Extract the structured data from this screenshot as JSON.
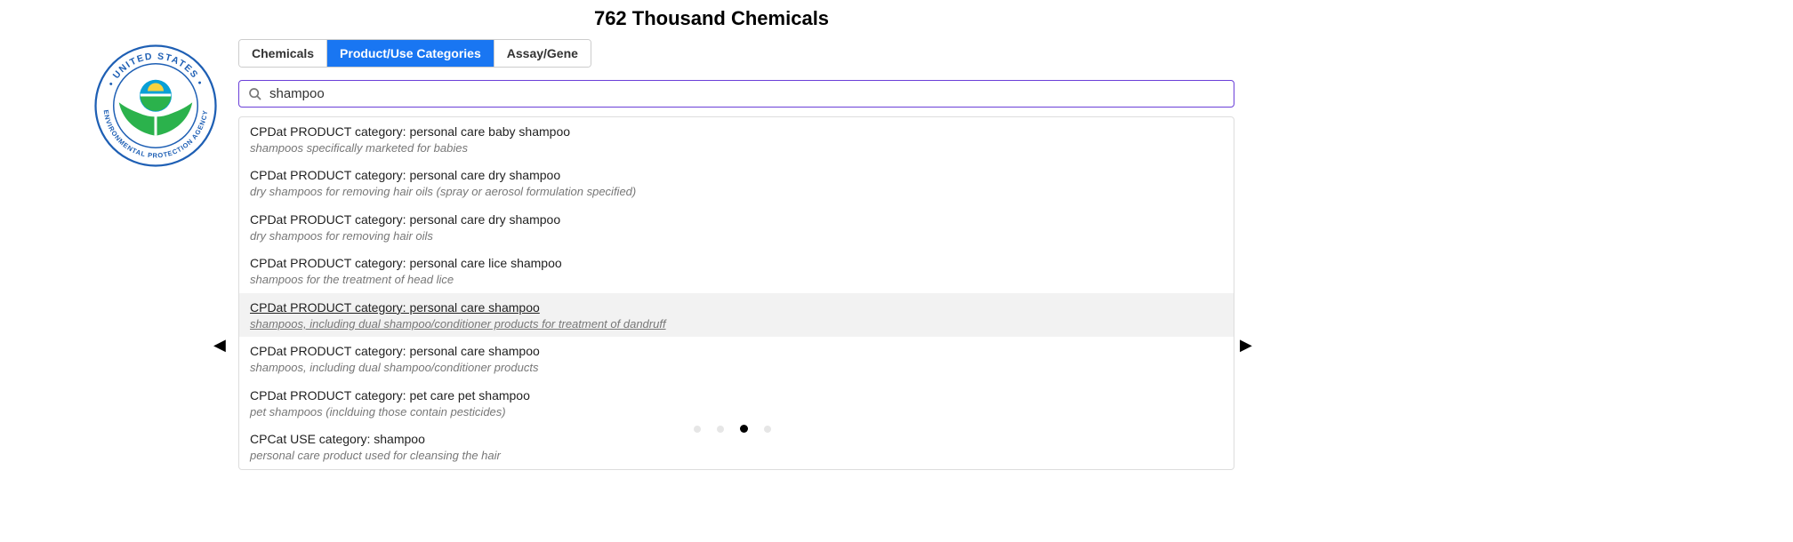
{
  "title": "762 Thousand Chemicals",
  "logo": {
    "outer_text_top": "UNITED STATES",
    "outer_text_bottom": "ENVIRONMENTAL PROTECTION AGENCY",
    "ring_color": "#1e5fb4",
    "flower_green": "#2bb24c",
    "sun_blue": "#0aa0d6",
    "sun_yellow": "#f7d23e"
  },
  "tabs": [
    {
      "id": "chemicals",
      "label": "Chemicals",
      "active": false
    },
    {
      "id": "product",
      "label": "Product/Use Categories",
      "active": true
    },
    {
      "id": "assay",
      "label": "Assay/Gene",
      "active": false
    }
  ],
  "search": {
    "value": "shampoo",
    "placeholder": "Search",
    "border_color": "#6a3fd8"
  },
  "results": [
    {
      "title": "CPDat PRODUCT category: personal care baby shampoo",
      "desc": "shampoos specifically marketed for babies",
      "hover": false
    },
    {
      "title": "CPDat PRODUCT category: personal care dry shampoo",
      "desc": "dry shampoos for removing hair oils (spray or aerosol formulation specified)",
      "hover": false
    },
    {
      "title": "CPDat PRODUCT category: personal care dry shampoo",
      "desc": "dry shampoos for removing hair oils",
      "hover": false
    },
    {
      "title": "CPDat PRODUCT category: personal care lice shampoo",
      "desc": "shampoos for the treatment of head lice",
      "hover": false
    },
    {
      "title": "CPDat PRODUCT category: personal care shampoo",
      "desc": "shampoos, including dual shampoo/conditioner products for treatment of dandruff",
      "hover": true
    },
    {
      "title": "CPDat PRODUCT category: personal care shampoo",
      "desc": "shampoos, including dual shampoo/conditioner products",
      "hover": false
    },
    {
      "title": "CPDat PRODUCT category: pet care pet shampoo",
      "desc": "pet shampoos (inclduing those contain pesticides)",
      "hover": false
    },
    {
      "title": "CPCat USE category: shampoo",
      "desc": "personal care product used for cleansing the hair",
      "hover": false
    }
  ],
  "nav": {
    "left": "◀",
    "right": "▶"
  },
  "carousel": {
    "dots": 4,
    "active_index": 2
  }
}
